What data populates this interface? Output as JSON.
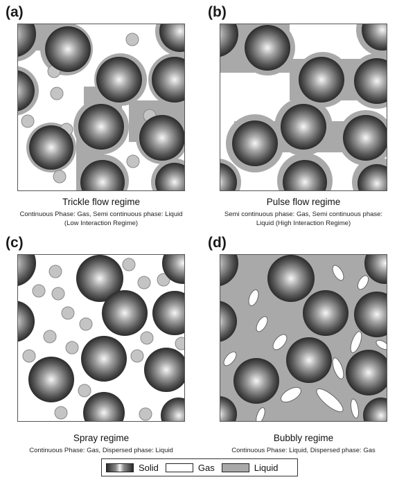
{
  "panels": [
    {
      "label": "(a)",
      "title": "Trickle flow regime",
      "desc_line1": "Continuous Phase: Gas, Semi continuous phase: Liquid",
      "desc_line2": "(Low Interaction Regime)"
    },
    {
      "label": "(b)",
      "title": "Pulse flow regime",
      "desc_line1": "Semi continuous phase: Gas, Semi continuous phase:",
      "desc_line2": "Liquid (High Interaction Regime)"
    },
    {
      "label": "(c)",
      "title": "Spray regime",
      "desc_line1": "Continuous Phase: Gas, Dispersed phase: Liquid",
      "desc_line2": ""
    },
    {
      "label": "(d)",
      "title": "Bubbly regime",
      "desc_line1": "Continuous Phase: Liquid, Dispersed phase: Gas",
      "desc_line2": ""
    }
  ],
  "legend": {
    "solid": "Solid",
    "gas": "Gas",
    "liquid": "Liquid"
  },
  "colors": {
    "liquid": "#a9a9a9",
    "gas": "#ffffff",
    "solid_dark": "#2b2b2b",
    "solid_light": "#f6f6f6",
    "outline": "#555555"
  }
}
